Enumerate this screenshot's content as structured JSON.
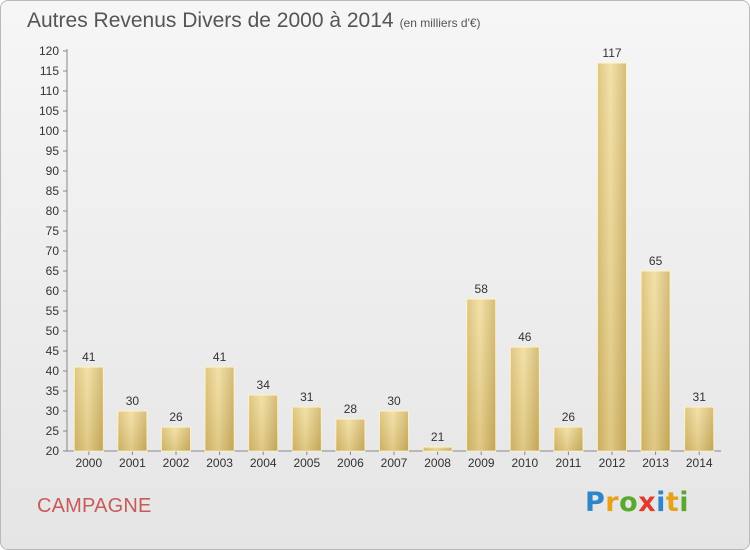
{
  "header": {
    "title": "Autres Revenus Divers de 2000 à 2014",
    "subtitle": "(en milliers d'€)"
  },
  "footer": {
    "commune": "CAMPAGNE",
    "logo": [
      {
        "ch": "P",
        "color": "#2e86c8"
      },
      {
        "ch": "r",
        "color": "#e7a21b"
      },
      {
        "ch": "o",
        "color": "#5aa82d"
      },
      {
        "ch": "x",
        "color": "#e03b2e"
      },
      {
        "ch": "i",
        "color": "#2e86c8"
      },
      {
        "ch": "t",
        "color": "#e7a21b"
      },
      {
        "ch": "i",
        "color": "#5aa82d"
      }
    ]
  },
  "chart_data": {
    "type": "bar",
    "categories": [
      "2000",
      "2001",
      "2002",
      "2003",
      "2004",
      "2005",
      "2006",
      "2007",
      "2008",
      "2009",
      "2010",
      "2011",
      "2012",
      "2013",
      "2014"
    ],
    "values": [
      41,
      30,
      26,
      41,
      34,
      31,
      28,
      30,
      21,
      58,
      46,
      26,
      117,
      65,
      31
    ],
    "ylim": [
      20,
      120
    ],
    "ytick_step": 5,
    "grid": false,
    "bar_color": "#e8cf86",
    "data_labels": true
  }
}
